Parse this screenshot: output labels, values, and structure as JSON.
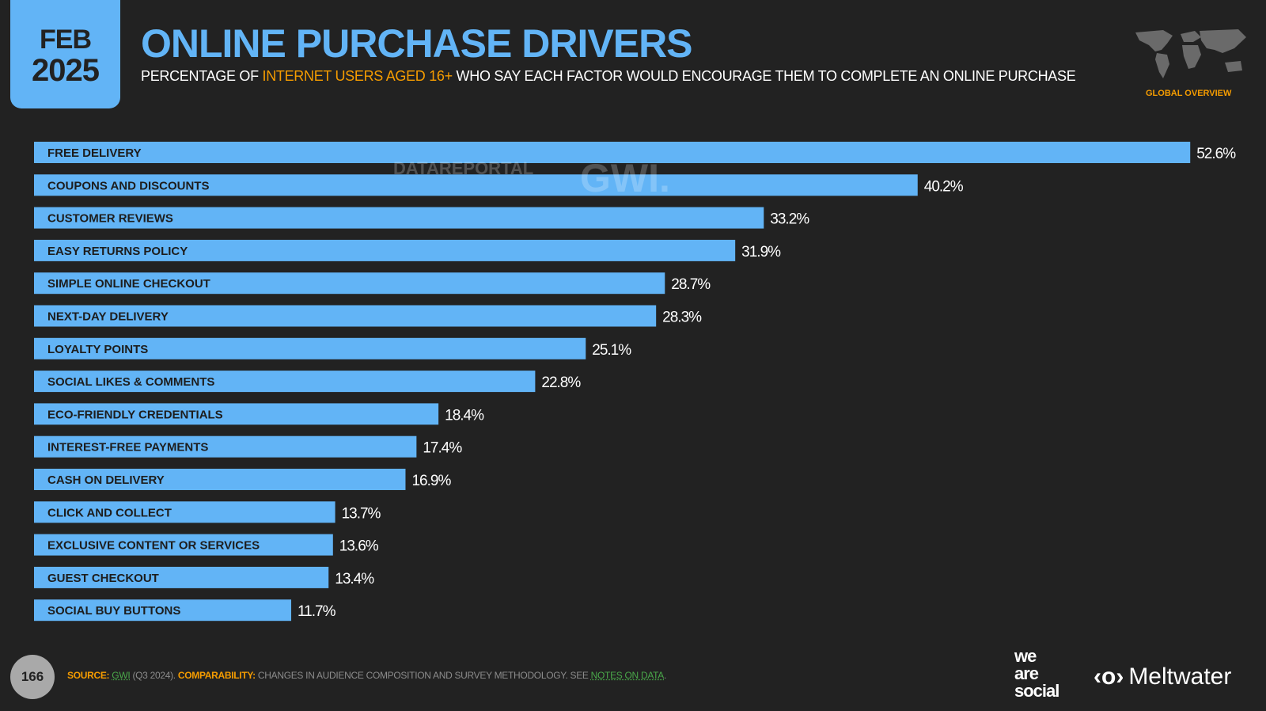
{
  "date": {
    "month": "FEB",
    "year": "2025"
  },
  "title": "ONLINE PURCHASE DRIVERS",
  "subtitle": {
    "pre": "PERCENTAGE OF ",
    "highlight": "INTERNET USERS AGED 16+",
    "post": " WHO SAY EACH FACTOR WOULD ENCOURAGE THEM TO COMPLETE AN ONLINE PURCHASE"
  },
  "region": "GLOBAL OVERVIEW",
  "watermark": {
    "datareportal": "DATAREPORTAL",
    "gwi": "GWI."
  },
  "colors": {
    "bar": "#62b4f6",
    "accent": "#f59c00",
    "background": "#222222"
  },
  "chart_data": {
    "type": "bar",
    "orientation": "horizontal",
    "unit": "%",
    "categories": [
      "FREE DELIVERY",
      "COUPONS AND DISCOUNTS",
      "CUSTOMER REVIEWS",
      "EASY RETURNS POLICY",
      "SIMPLE ONLINE CHECKOUT",
      "NEXT-DAY DELIVERY",
      "LOYALTY POINTS",
      "SOCIAL LIKES & COMMENTS",
      "ECO-FRIENDLY CREDENTIALS",
      "INTEREST-FREE PAYMENTS",
      "CASH ON DELIVERY",
      "CLICK AND COLLECT",
      "EXCLUSIVE CONTENT OR SERVICES",
      "GUEST CHECKOUT",
      "SOCIAL BUY BUTTONS"
    ],
    "values": [
      52.6,
      40.2,
      33.2,
      31.9,
      28.7,
      28.3,
      25.1,
      22.8,
      18.4,
      17.4,
      16.9,
      13.7,
      13.6,
      13.4,
      11.7
    ],
    "value_labels": [
      "52.6%",
      "40.2%",
      "33.2%",
      "31.9%",
      "28.7%",
      "28.3%",
      "25.1%",
      "22.8%",
      "18.4%",
      "17.4%",
      "16.9%",
      "13.7%",
      "13.6%",
      "13.4%",
      "11.7%"
    ]
  },
  "footer": {
    "page": "166",
    "source_label": "SOURCE:",
    "source": "GWI",
    "source_rest": " (Q3 2024). ",
    "comp_label": "COMPARABILITY:",
    "comp_text": " CHANGES IN AUDIENCE COMPOSITION AND SURVEY METHODOLOGY. SEE ",
    "notes": "NOTES ON DATA",
    "end": "."
  },
  "logos": {
    "wearesocial": [
      "we",
      "are",
      "social"
    ],
    "meltwater": "Meltwater"
  }
}
